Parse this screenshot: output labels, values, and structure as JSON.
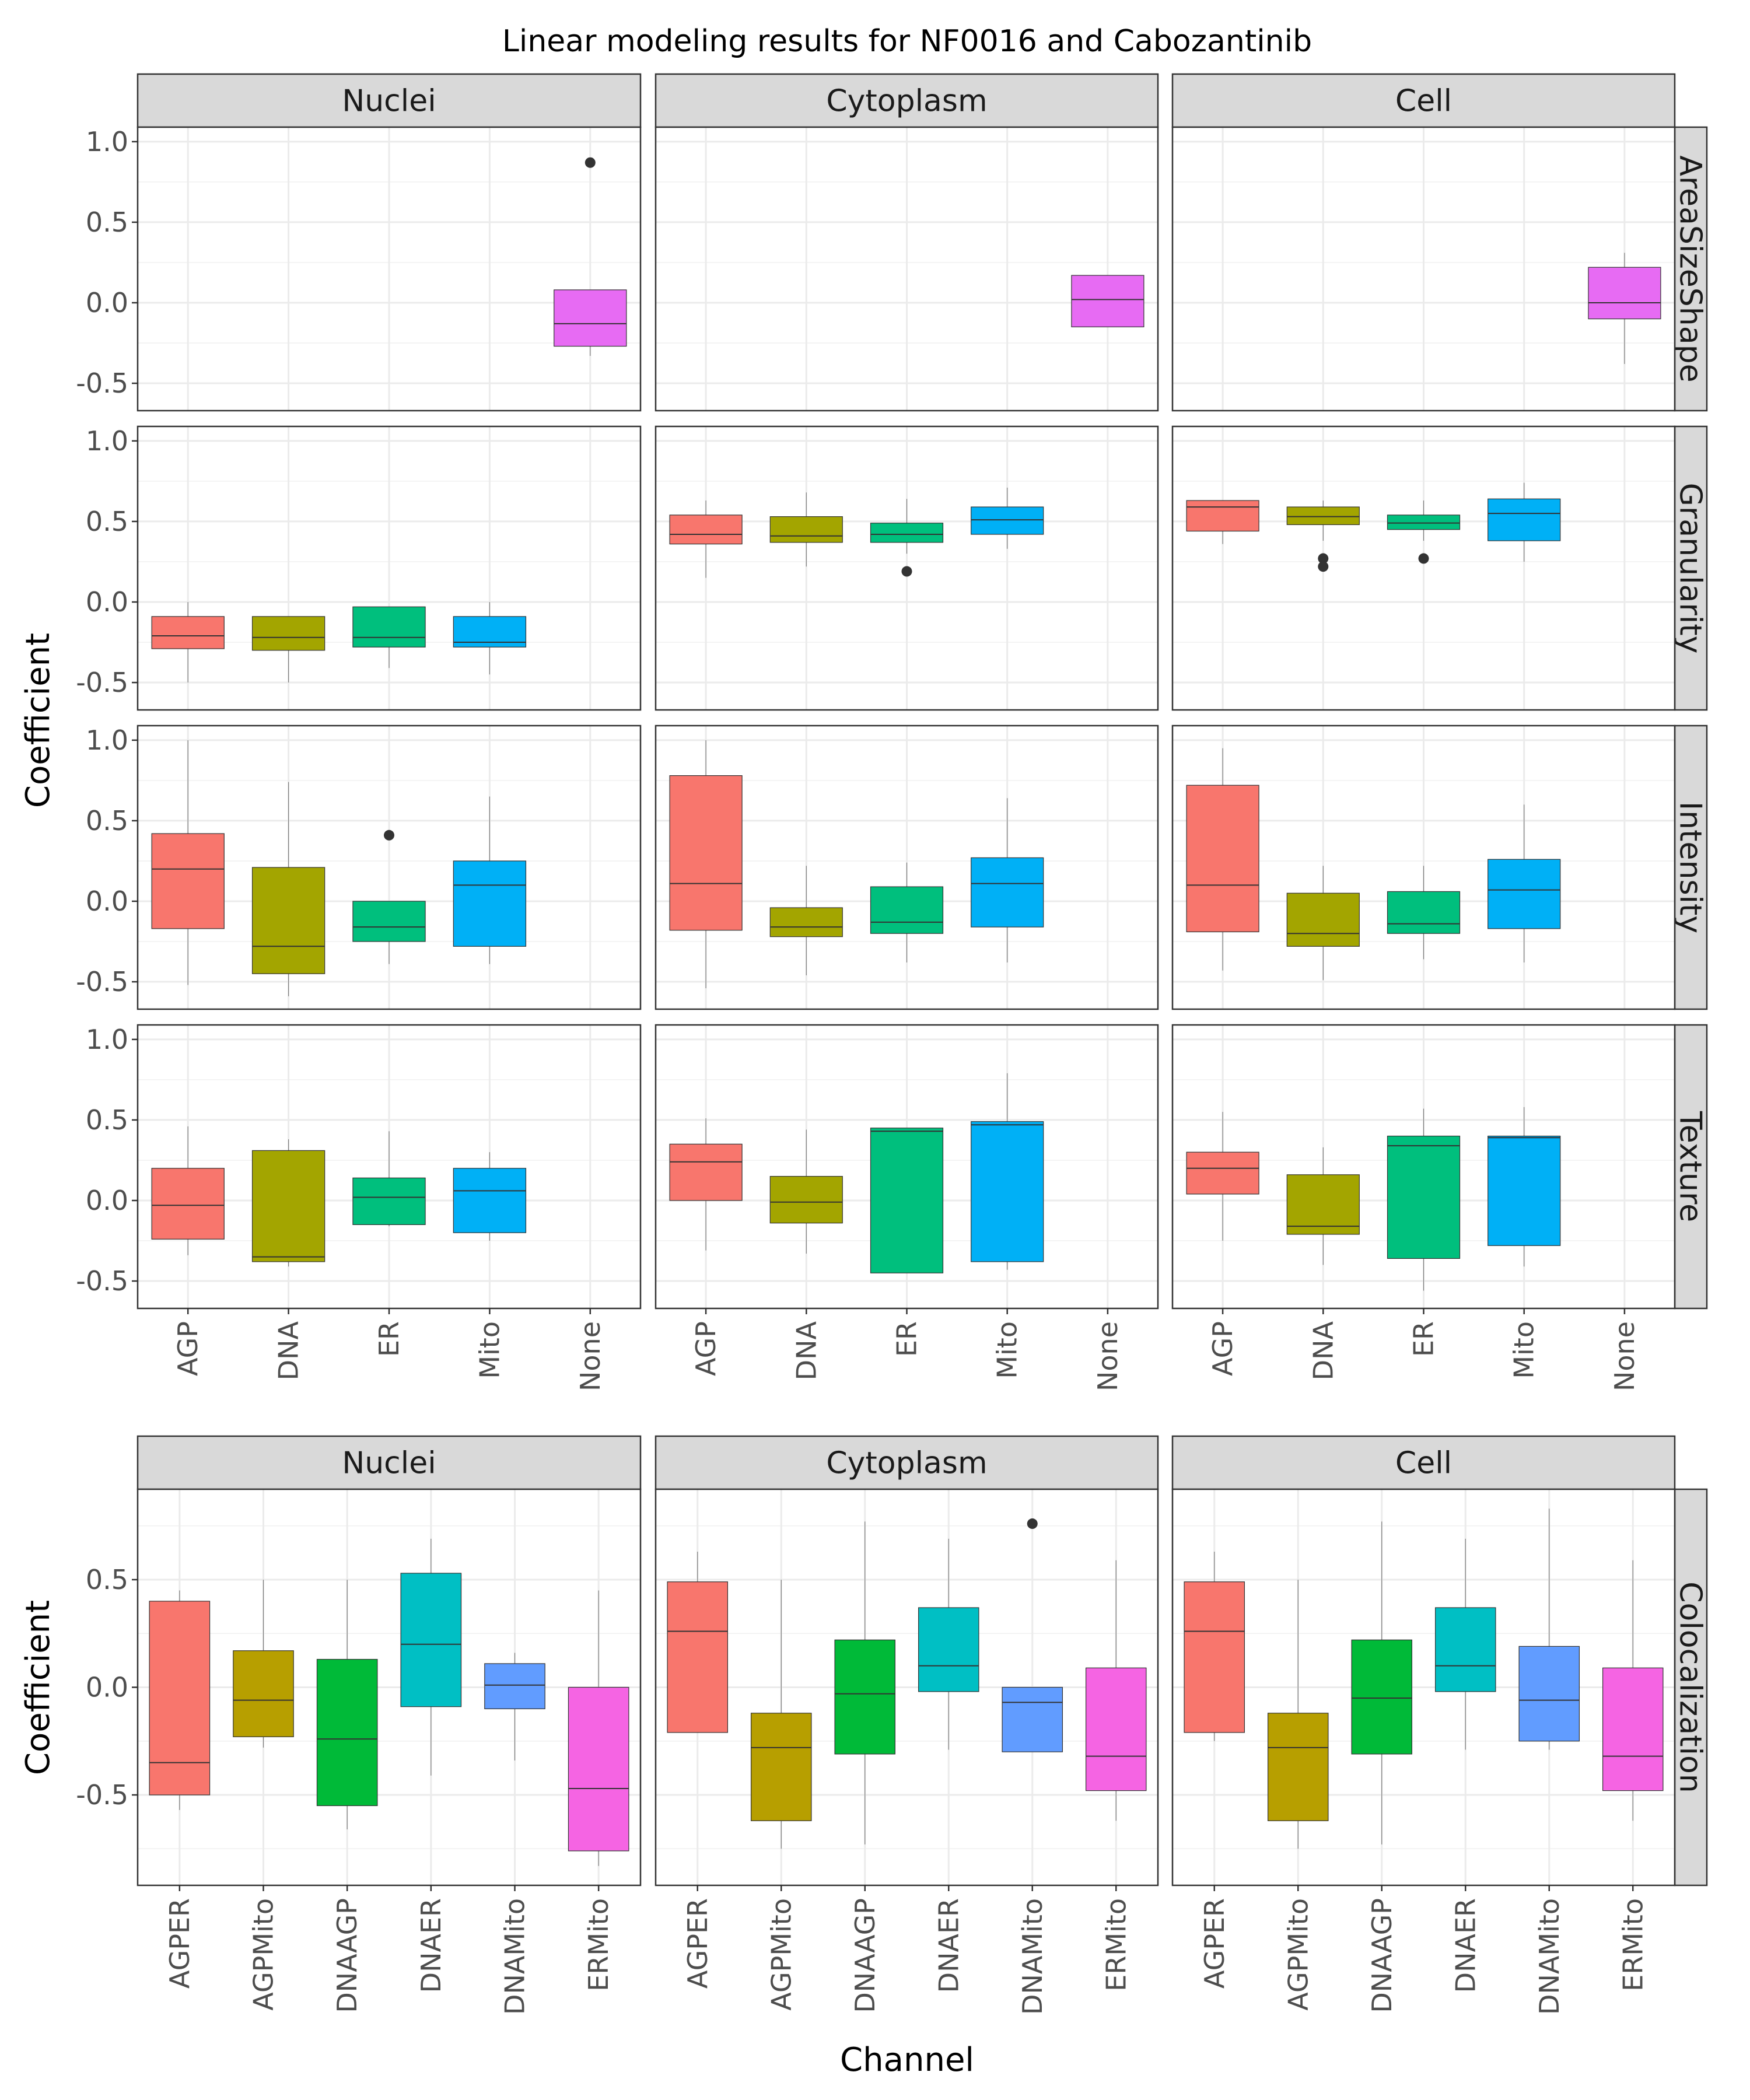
{
  "chart_data": [
    {
      "type": "box",
      "title": "Linear modeling results for NF0016 and Cabozantinib",
      "xlabel": "",
      "ylabel": "Coefficient",
      "ylim": [
        -0.67,
        1.09
      ],
      "y_ticks": [
        -0.5,
        0.0,
        0.5,
        1.0
      ],
      "y_tick_labels": [
        "-0.5",
        "0.0",
        "0.5",
        "1.0"
      ],
      "grid": true,
      "legend": "none",
      "columns": [
        "Nuclei",
        "Cytoplasm",
        "Cell"
      ],
      "rows": [
        "AreaSizeShape",
        "Granularity",
        "Intensity",
        "Texture"
      ],
      "categories": [
        "AGP",
        "DNA",
        "ER",
        "Mito",
        "None"
      ],
      "colors": {
        "AGP": "#F8766D",
        "DNA": "#A3A500",
        "ER": "#00BF7D",
        "Mito": "#00B0F6",
        "None": "#E76BF3"
      },
      "panels": [
        {
          "row": "AreaSizeShape",
          "column": "Nuclei",
          "boxes": [
            {
              "category": "None",
              "min": -0.33,
              "q1": -0.27,
              "median": -0.13,
              "q3": 0.08,
              "max": 0.08,
              "outliers": [
                0.87
              ]
            }
          ]
        },
        {
          "row": "AreaSizeShape",
          "column": "Cytoplasm",
          "boxes": [
            {
              "category": "None",
              "min": -0.15,
              "q1": -0.15,
              "median": 0.02,
              "q3": 0.17,
              "max": 0.17,
              "outliers": []
            }
          ]
        },
        {
          "row": "AreaSizeShape",
          "column": "Cell",
          "boxes": [
            {
              "category": "None",
              "min": -0.38,
              "q1": -0.1,
              "median": 0.0,
              "q3": 0.22,
              "max": 0.31,
              "outliers": []
            }
          ]
        },
        {
          "row": "Granularity",
          "column": "Nuclei",
          "boxes": [
            {
              "category": "AGP",
              "min": -0.5,
              "q1": -0.29,
              "median": -0.21,
              "q3": -0.09,
              "max": 0.0,
              "outliers": []
            },
            {
              "category": "DNA",
              "min": -0.5,
              "q1": -0.3,
              "median": -0.22,
              "q3": -0.09,
              "max": -0.09,
              "outliers": []
            },
            {
              "category": "ER",
              "min": -0.41,
              "q1": -0.28,
              "median": -0.22,
              "q3": -0.03,
              "max": -0.03,
              "outliers": []
            },
            {
              "category": "Mito",
              "min": -0.45,
              "q1": -0.28,
              "median": -0.25,
              "q3": -0.09,
              "max": 0.0,
              "outliers": []
            }
          ]
        },
        {
          "row": "Granularity",
          "column": "Cytoplasm",
          "boxes": [
            {
              "category": "AGP",
              "min": 0.15,
              "q1": 0.36,
              "median": 0.42,
              "q3": 0.54,
              "max": 0.63,
              "outliers": []
            },
            {
              "category": "DNA",
              "min": 0.22,
              "q1": 0.37,
              "median": 0.41,
              "q3": 0.53,
              "max": 0.68,
              "outliers": []
            },
            {
              "category": "ER",
              "min": 0.3,
              "q1": 0.37,
              "median": 0.42,
              "q3": 0.49,
              "max": 0.64,
              "outliers": [
                0.19
              ]
            },
            {
              "category": "Mito",
              "min": 0.33,
              "q1": 0.42,
              "median": 0.51,
              "q3": 0.59,
              "max": 0.71,
              "outliers": []
            }
          ]
        },
        {
          "row": "Granularity",
          "column": "Cell",
          "boxes": [
            {
              "category": "AGP",
              "min": 0.36,
              "q1": 0.44,
              "median": 0.59,
              "q3": 0.63,
              "max": 0.63,
              "outliers": []
            },
            {
              "category": "DNA",
              "min": 0.38,
              "q1": 0.48,
              "median": 0.53,
              "q3": 0.59,
              "max": 0.63,
              "outliers": [
                0.27,
                0.22
              ]
            },
            {
              "category": "ER",
              "min": 0.38,
              "q1": 0.45,
              "median": 0.49,
              "q3": 0.54,
              "max": 0.63,
              "outliers": [
                0.27
              ]
            },
            {
              "category": "Mito",
              "min": 0.25,
              "q1": 0.38,
              "median": 0.55,
              "q3": 0.64,
              "max": 0.74,
              "outliers": []
            }
          ]
        },
        {
          "row": "Intensity",
          "column": "Nuclei",
          "boxes": [
            {
              "category": "AGP",
              "min": -0.52,
              "q1": -0.17,
              "median": 0.2,
              "q3": 0.42,
              "max": 1.0,
              "outliers": []
            },
            {
              "category": "DNA",
              "min": -0.59,
              "q1": -0.45,
              "median": -0.28,
              "q3": 0.21,
              "max": 0.74,
              "outliers": []
            },
            {
              "category": "ER",
              "min": -0.39,
              "q1": -0.25,
              "median": -0.16,
              "q3": 0.0,
              "max": 0.0,
              "outliers": [
                0.41
              ]
            },
            {
              "category": "Mito",
              "min": -0.39,
              "q1": -0.28,
              "median": 0.1,
              "q3": 0.25,
              "max": 0.65,
              "outliers": []
            }
          ]
        },
        {
          "row": "Intensity",
          "column": "Cytoplasm",
          "boxes": [
            {
              "category": "AGP",
              "min": -0.54,
              "q1": -0.18,
              "median": 0.11,
              "q3": 0.78,
              "max": 1.0,
              "outliers": []
            },
            {
              "category": "DNA",
              "min": -0.46,
              "q1": -0.22,
              "median": -0.16,
              "q3": -0.04,
              "max": 0.22,
              "outliers": []
            },
            {
              "category": "ER",
              "min": -0.38,
              "q1": -0.2,
              "median": -0.13,
              "q3": 0.09,
              "max": 0.24,
              "outliers": []
            },
            {
              "category": "Mito",
              "min": -0.38,
              "q1": -0.16,
              "median": 0.11,
              "q3": 0.27,
              "max": 0.64,
              "outliers": []
            }
          ]
        },
        {
          "row": "Intensity",
          "column": "Cell",
          "boxes": [
            {
              "category": "AGP",
              "min": -0.43,
              "q1": -0.19,
              "median": 0.1,
              "q3": 0.72,
              "max": 0.95,
              "outliers": []
            },
            {
              "category": "DNA",
              "min": -0.49,
              "q1": -0.28,
              "median": -0.2,
              "q3": 0.05,
              "max": 0.22,
              "outliers": []
            },
            {
              "category": "ER",
              "min": -0.36,
              "q1": -0.2,
              "median": -0.14,
              "q3": 0.06,
              "max": 0.22,
              "outliers": []
            },
            {
              "category": "Mito",
              "min": -0.38,
              "q1": -0.17,
              "median": 0.07,
              "q3": 0.26,
              "max": 0.6,
              "outliers": []
            }
          ]
        },
        {
          "row": "Texture",
          "column": "Nuclei",
          "boxes": [
            {
              "category": "AGP",
              "min": -0.34,
              "q1": -0.24,
              "median": -0.03,
              "q3": 0.2,
              "max": 0.46,
              "outliers": []
            },
            {
              "category": "DNA",
              "min": -0.41,
              "q1": -0.38,
              "median": -0.35,
              "q3": 0.31,
              "max": 0.38,
              "outliers": []
            },
            {
              "category": "ER",
              "min": -0.16,
              "q1": -0.15,
              "median": 0.02,
              "q3": 0.14,
              "max": 0.43,
              "outliers": []
            },
            {
              "category": "Mito",
              "min": -0.25,
              "q1": -0.2,
              "median": 0.06,
              "q3": 0.2,
              "max": 0.3,
              "outliers": []
            }
          ]
        },
        {
          "row": "Texture",
          "column": "Cytoplasm",
          "boxes": [
            {
              "category": "AGP",
              "min": -0.31,
              "q1": 0.0,
              "median": 0.24,
              "q3": 0.35,
              "max": 0.51,
              "outliers": []
            },
            {
              "category": "DNA",
              "min": -0.33,
              "q1": -0.14,
              "median": -0.01,
              "q3": 0.15,
              "max": 0.44,
              "outliers": []
            },
            {
              "category": "ER",
              "min": -0.45,
              "q1": -0.45,
              "median": 0.43,
              "q3": 0.45,
              "max": 0.45,
              "outliers": []
            },
            {
              "category": "Mito",
              "min": -0.43,
              "q1": -0.38,
              "median": 0.47,
              "q3": 0.49,
              "max": 0.79,
              "outliers": []
            }
          ]
        },
        {
          "row": "Texture",
          "column": "Cell",
          "boxes": [
            {
              "category": "AGP",
              "min": -0.25,
              "q1": 0.04,
              "median": 0.2,
              "q3": 0.3,
              "max": 0.55,
              "outliers": []
            },
            {
              "category": "DNA",
              "min": -0.4,
              "q1": -0.21,
              "median": -0.16,
              "q3": 0.16,
              "max": 0.33,
              "outliers": []
            },
            {
              "category": "ER",
              "min": -0.56,
              "q1": -0.36,
              "median": 0.34,
              "q3": 0.4,
              "max": 0.57,
              "outliers": []
            },
            {
              "category": "Mito",
              "min": -0.41,
              "q1": -0.28,
              "median": 0.39,
              "q3": 0.4,
              "max": 0.58,
              "outliers": []
            }
          ]
        }
      ]
    },
    {
      "type": "box",
      "xlabel": "Channel",
      "ylabel": "Coefficient",
      "ylim": [
        -0.92,
        0.92
      ],
      "y_ticks": [
        -0.5,
        0.0,
        0.5
      ],
      "y_tick_labels": [
        "-0.5",
        "0.0",
        "0.5"
      ],
      "grid": true,
      "legend": "none",
      "columns": [
        "Nuclei",
        "Cytoplasm",
        "Cell"
      ],
      "rows": [
        "Colocalization"
      ],
      "categories": [
        "AGPER",
        "AGPMito",
        "DNAAGP",
        "DNAER",
        "DNAMito",
        "ERMito"
      ],
      "colors": {
        "AGPER": "#F8766D",
        "AGPMito": "#B79F00",
        "DNAAGP": "#00BA38",
        "DNAER": "#00BFC4",
        "DNAMito": "#619CFF",
        "ERMito": "#F564E3"
      },
      "panels": [
        {
          "row": "Colocalization",
          "column": "Nuclei",
          "boxes": [
            {
              "category": "AGPER",
              "min": -0.57,
              "q1": -0.5,
              "median": -0.35,
              "q3": 0.4,
              "max": 0.45,
              "outliers": []
            },
            {
              "category": "AGPMito",
              "min": -0.28,
              "q1": -0.23,
              "median": -0.06,
              "q3": 0.17,
              "max": 0.5,
              "outliers": []
            },
            {
              "category": "DNAAGP",
              "min": -0.66,
              "q1": -0.55,
              "median": -0.24,
              "q3": 0.13,
              "max": 0.5,
              "outliers": []
            },
            {
              "category": "DNAER",
              "min": -0.41,
              "q1": -0.09,
              "median": 0.2,
              "q3": 0.53,
              "max": 0.69,
              "outliers": []
            },
            {
              "category": "DNAMito",
              "min": -0.34,
              "q1": -0.1,
              "median": 0.01,
              "q3": 0.11,
              "max": 0.16,
              "outliers": []
            },
            {
              "category": "ERMito",
              "min": -0.83,
              "q1": -0.76,
              "median": -0.47,
              "q3": 0.0,
              "max": 0.45,
              "outliers": []
            }
          ]
        },
        {
          "row": "Colocalization",
          "column": "Cytoplasm",
          "boxes": [
            {
              "category": "AGPER",
              "min": -0.21,
              "q1": -0.21,
              "median": 0.26,
              "q3": 0.49,
              "max": 0.63,
              "outliers": []
            },
            {
              "category": "AGPMito",
              "min": -0.75,
              "q1": -0.62,
              "median": -0.28,
              "q3": -0.12,
              "max": 0.5,
              "outliers": []
            },
            {
              "category": "DNAAGP",
              "min": -0.73,
              "q1": -0.31,
              "median": -0.03,
              "q3": 0.22,
              "max": 0.77,
              "outliers": []
            },
            {
              "category": "DNAER",
              "min": -0.29,
              "q1": -0.02,
              "median": 0.1,
              "q3": 0.37,
              "max": 0.69,
              "outliers": []
            },
            {
              "category": "DNAMito",
              "min": -0.3,
              "q1": -0.3,
              "median": -0.07,
              "q3": 0.0,
              "max": 0.0,
              "outliers": [
                0.76
              ]
            },
            {
              "category": "ERMito",
              "min": -0.62,
              "q1": -0.48,
              "median": -0.32,
              "q3": 0.09,
              "max": 0.59,
              "outliers": []
            }
          ]
        },
        {
          "row": "Colocalization",
          "column": "Cell",
          "boxes": [
            {
              "category": "AGPER",
              "min": -0.25,
              "q1": -0.21,
              "median": 0.26,
              "q3": 0.49,
              "max": 0.63,
              "outliers": []
            },
            {
              "category": "AGPMito",
              "min": -0.75,
              "q1": -0.62,
              "median": -0.28,
              "q3": -0.12,
              "max": 0.5,
              "outliers": []
            },
            {
              "category": "DNAAGP",
              "min": -0.73,
              "q1": -0.31,
              "median": -0.05,
              "q3": 0.22,
              "max": 0.77,
              "outliers": []
            },
            {
              "category": "DNAER",
              "min": -0.29,
              "q1": -0.02,
              "median": 0.1,
              "q3": 0.37,
              "max": 0.69,
              "outliers": []
            },
            {
              "category": "DNAMito",
              "min": -0.29,
              "q1": -0.25,
              "median": -0.06,
              "q3": 0.19,
              "max": 0.83,
              "outliers": []
            },
            {
              "category": "ERMito",
              "min": -0.62,
              "q1": -0.48,
              "median": -0.32,
              "q3": 0.09,
              "max": 0.59,
              "outliers": []
            }
          ]
        }
      ]
    }
  ]
}
